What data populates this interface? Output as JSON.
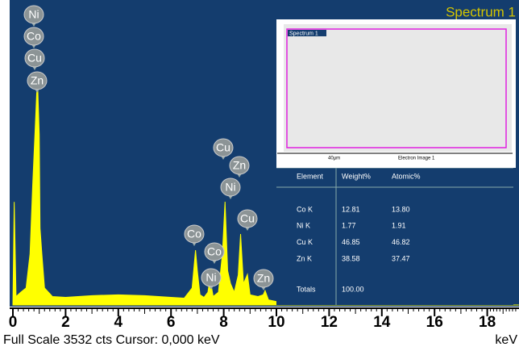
{
  "chart_data": {
    "type": "area",
    "title": "Spectrum 1",
    "footer": "Full Scale 3532 cts  Cursor: 0,000 keV",
    "xlabel": "keV",
    "x": [
      0,
      0.05,
      0.12,
      0.3,
      0.5,
      0.65,
      0.75,
      0.85,
      0.93,
      1.0,
      1.03,
      1.1,
      1.2,
      1.5,
      2,
      3,
      4,
      5,
      6,
      6.5,
      6.8,
      6.93,
      7.0,
      7.1,
      7.25,
      7.4,
      7.48,
      7.6,
      7.8,
      7.95,
      8.05,
      8.15,
      8.26,
      8.4,
      8.55,
      8.64,
      8.75,
      8.9,
      9.0,
      9.3,
      9.5,
      9.57,
      9.7,
      10,
      11,
      12,
      14,
      16,
      19.2
    ],
    "series": [
      {
        "name": "Spectrum 1",
        "color": "#ffff00",
        "values": [
          0,
          1210,
          100,
          150,
          200,
          600,
          1400,
          2100,
          2680,
          2000,
          900,
          600,
          200,
          100,
          90,
          110,
          120,
          110,
          90,
          80,
          200,
          644,
          400,
          120,
          90,
          150,
          312,
          100,
          150,
          600,
          1212,
          400,
          250,
          150,
          350,
          833,
          250,
          360,
          120,
          100,
          120,
          170,
          60,
          40,
          30,
          20,
          10,
          5,
          0
        ]
      }
    ],
    "xlim": [
      0,
      19.2
    ],
    "ylim": [
      0,
      3532
    ],
    "xticks": [
      0,
      2,
      4,
      6,
      8,
      10,
      12,
      14,
      16,
      18
    ],
    "annotations": [
      "Ni",
      "Co",
      "Cu",
      "Zn",
      "Cu",
      "Zn",
      "Ni",
      "Cu",
      "Co",
      "Co",
      "Ni",
      "Zn"
    ]
  },
  "image_inset": {
    "label": "Spectrum 1",
    "scale": "40µm",
    "caption": "Electron Image 1"
  },
  "table": {
    "header": [
      "Element",
      "Weight%",
      "Atomic%"
    ],
    "rows": [
      [
        "Co K",
        "12.81",
        "13.80"
      ],
      [
        "Ni K",
        "1.77",
        "1.91"
      ],
      [
        "Cu K",
        "46.85",
        "46.82"
      ],
      [
        "Zn K",
        "38.58",
        "37.47"
      ]
    ],
    "totals": [
      "Totals",
      "100.00"
    ]
  }
}
